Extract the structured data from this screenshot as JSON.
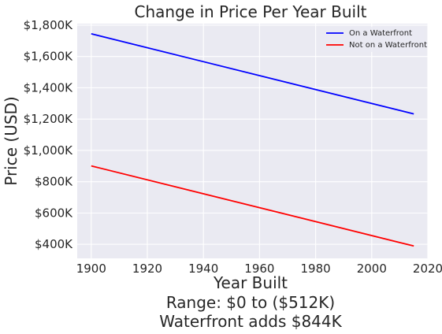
{
  "chart_data": {
    "type": "line",
    "title": "Change in Price Per Year Built",
    "xlabel": "Year Built",
    "xlabel_lines": [
      "Range: $0 to ($512K)",
      "Waterfront adds $844K"
    ],
    "ylabel": "Price (USD)",
    "xlim": [
      1895,
      2020
    ],
    "ylim": [
      310,
      1810
    ],
    "x_ticks": [
      1900,
      1920,
      1940,
      1960,
      1980,
      2000,
      2020
    ],
    "y_ticks": [
      400,
      600,
      800,
      1000,
      1200,
      1400,
      1600,
      1800
    ],
    "y_tick_labels": [
      "$400K",
      "$600K",
      "$800K",
      "$1,000K",
      "$1,200K",
      "$1,400K",
      "$1,600K",
      "$1,800K"
    ],
    "grid": true,
    "legend_position": "top-right",
    "series": [
      {
        "name": "On a Waterfront",
        "color": "#0000ff",
        "x": [
          1900,
          2015
        ],
        "y": [
          1745,
          1233
        ]
      },
      {
        "name": "Not on a Waterfront",
        "color": "#ff0000",
        "x": [
          1900,
          2015
        ],
        "y": [
          901,
          389
        ]
      }
    ]
  }
}
